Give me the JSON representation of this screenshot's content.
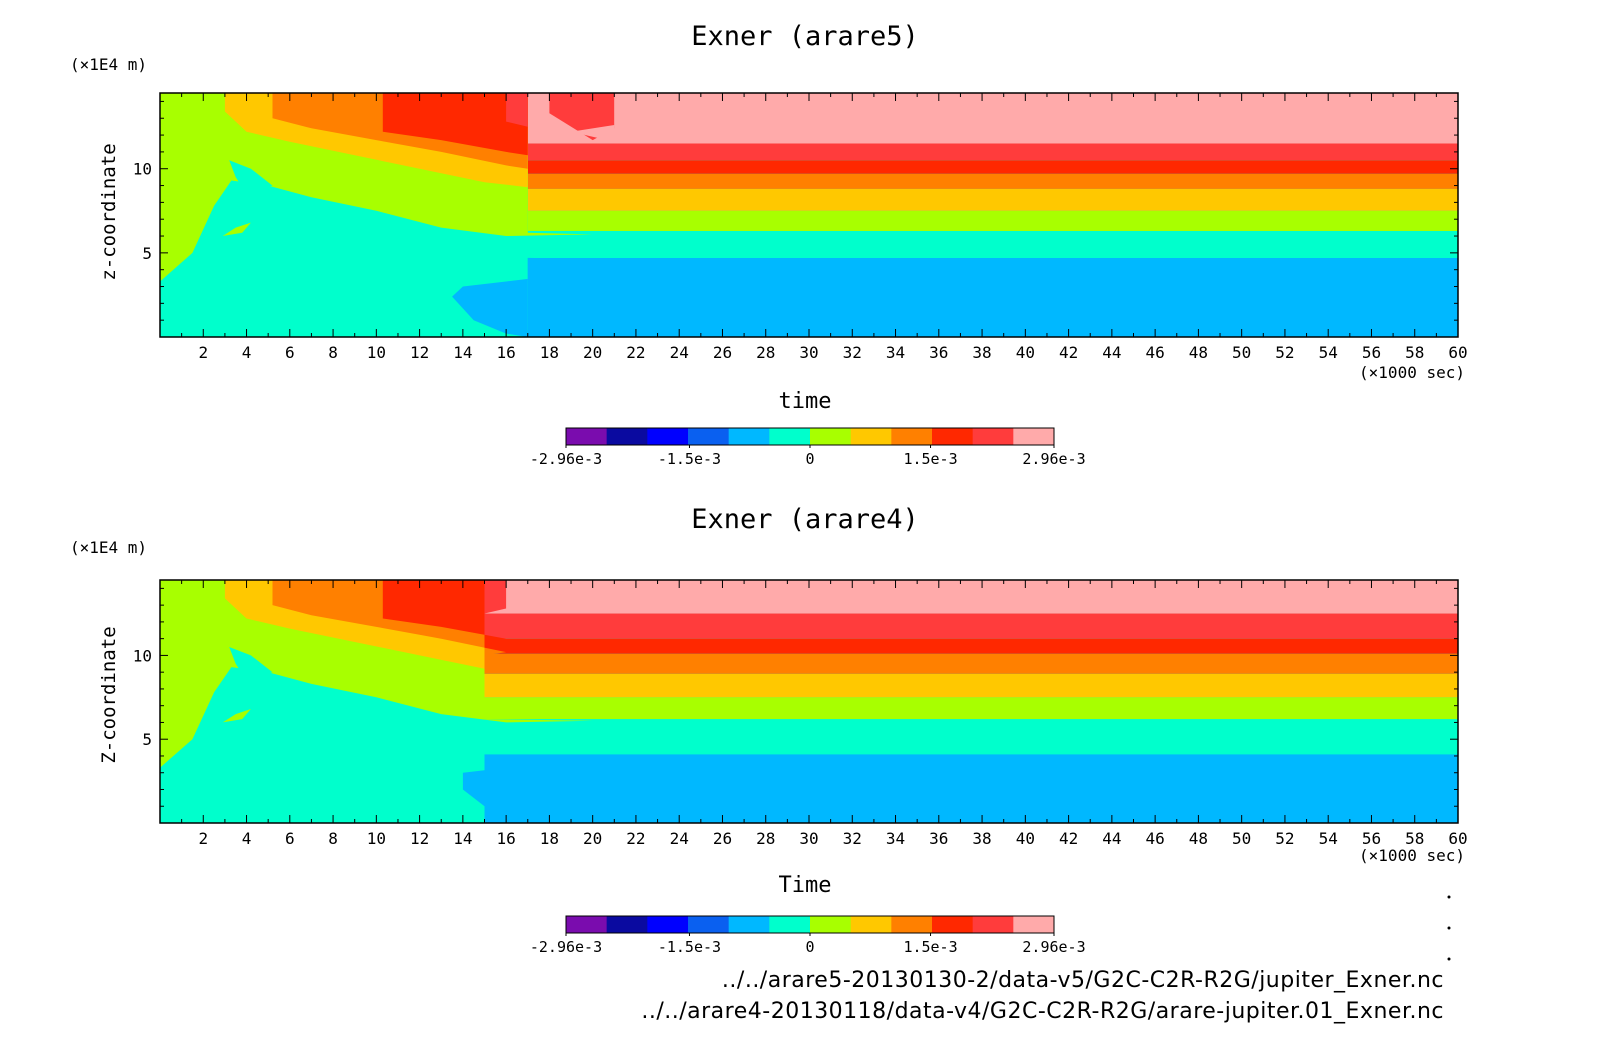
{
  "colorbar": {
    "colors": [
      "#7a0cae",
      "#0a0aa0",
      "#0000ff",
      "#0a60f0",
      "#00b8ff",
      "#00ffcc",
      "#a8ff00",
      "#ffc800",
      "#ff8000",
      "#ff2800",
      "#ff3c3c",
      "#ffaaaa"
    ],
    "labels": [
      "-2.96e-3",
      "-1.5e-3",
      "0",
      "1.5e-3",
      "2.96e-3"
    ]
  },
  "chart_data": [
    {
      "type": "heatmap",
      "title": "Exner (arare5)",
      "xlabel": "time",
      "ylabel": "z-coordinate",
      "x_unit": "(×1000 sec)",
      "y_unit": "(×1E4 m)",
      "xlim": [
        0,
        60
      ],
      "ylim": [
        0,
        14.5
      ],
      "x_ticks": [
        "2",
        "4",
        "6",
        "8",
        "10",
        "12",
        "14",
        "16",
        "18",
        "20",
        "22",
        "24",
        "26",
        "28",
        "30",
        "32",
        "34",
        "36",
        "38",
        "40",
        "42",
        "44",
        "46",
        "48",
        "50",
        "52",
        "54",
        "56",
        "58",
        "60"
      ],
      "y_ticks": [
        "5",
        "10"
      ],
      "colorbar_range": [
        -0.00296,
        0.00296
      ],
      "bands_late": [
        {
          "z_from": 0,
          "z_to": 4.7,
          "color": "#00b8ff"
        },
        {
          "z_from": 4.7,
          "z_to": 6.3,
          "color": "#00ffcc"
        },
        {
          "z_from": 6.3,
          "z_to": 7.5,
          "color": "#a8ff00"
        },
        {
          "z_from": 7.5,
          "z_to": 8.8,
          "color": "#ffc800"
        },
        {
          "z_from": 8.8,
          "z_to": 9.7,
          "color": "#ff8000"
        },
        {
          "z_from": 9.7,
          "z_to": 10.5,
          "color": "#ff2800"
        },
        {
          "z_from": 10.5,
          "z_to": 11.5,
          "color": "#ff3c3c"
        },
        {
          "z_from": 11.5,
          "z_to": 14.5,
          "color": "#ffaaaa"
        }
      ]
    },
    {
      "type": "heatmap",
      "title": "Exner (arare4)",
      "xlabel": "Time",
      "ylabel": "Z-coordinate",
      "x_unit": "(×1000 sec)",
      "y_unit": "(×1E4 m)",
      "xlim": [
        0,
        60
      ],
      "ylim": [
        0,
        14.5
      ],
      "x_ticks": [
        "2",
        "4",
        "6",
        "8",
        "10",
        "12",
        "14",
        "16",
        "18",
        "20",
        "22",
        "24",
        "26",
        "28",
        "30",
        "32",
        "34",
        "36",
        "38",
        "40",
        "42",
        "44",
        "46",
        "48",
        "50",
        "52",
        "54",
        "56",
        "58",
        "60"
      ],
      "y_ticks": [
        "5",
        "10"
      ],
      "colorbar_range": [
        -0.00296,
        0.00296
      ],
      "bands_late": [
        {
          "z_from": 0,
          "z_to": 4.1,
          "color": "#00b8ff"
        },
        {
          "z_from": 4.1,
          "z_to": 6.2,
          "color": "#00ffcc"
        },
        {
          "z_from": 6.2,
          "z_to": 7.5,
          "color": "#a8ff00"
        },
        {
          "z_from": 7.5,
          "z_to": 8.9,
          "color": "#ffc800"
        },
        {
          "z_from": 8.9,
          "z_to": 10.1,
          "color": "#ff8000"
        },
        {
          "z_from": 10.1,
          "z_to": 11.0,
          "color": "#ff2800"
        },
        {
          "z_from": 11.0,
          "z_to": 12.5,
          "color": "#ff3c3c"
        },
        {
          "z_from": 12.5,
          "z_to": 14.5,
          "color": "#ffaaaa"
        }
      ]
    }
  ],
  "footer": {
    "path1": "../../arare5-20130130-2/data-v5/G2C-C2R-R2G/jupiter_Exner.nc",
    "path2": "../../arare4-20130118/data-v4/G2C-C2R-R2G/arare-jupiter.01_Exner.nc"
  }
}
